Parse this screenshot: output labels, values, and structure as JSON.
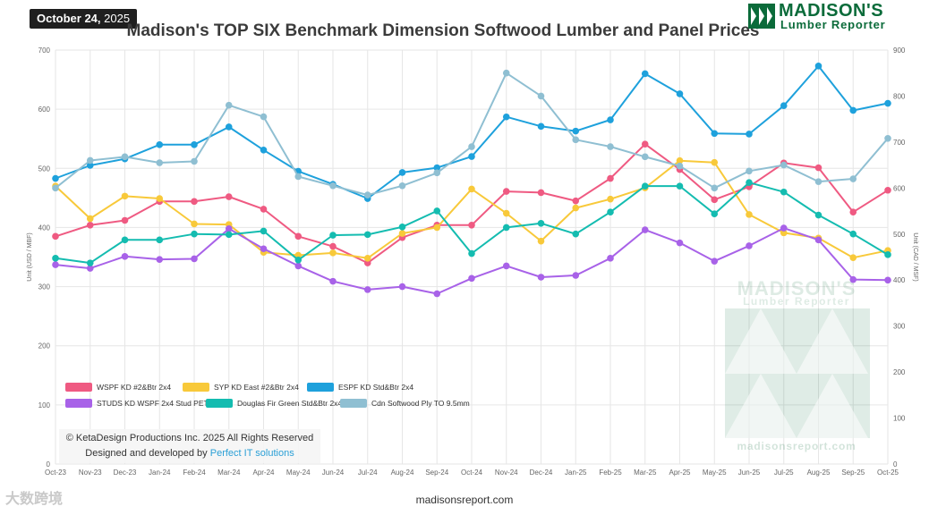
{
  "header": {
    "date_badge": "October 24,",
    "date_year": "2025",
    "title": "Madison's TOP SIX Benchmark Dimension Softwood Lumber and Panel Prices",
    "logo_line1": "MADISON'S",
    "logo_line2": "Lumber Reporter"
  },
  "watermark": {
    "line1": "MADISON'S",
    "line2": "Lumber Reporter",
    "site": "madisonsreport.com",
    "corner": "大数跨境"
  },
  "credits": {
    "copyright": "© KetaDesign Productions Inc. 2025 All Rights Reserved",
    "designed_prefix": "Designed and developed by",
    "designed_link": "Perfect IT solutions"
  },
  "footer": {
    "site": "madisonsreport.com"
  },
  "colors": {
    "wspf": "#ef5a82",
    "syp": "#f8c93a",
    "espf": "#1ea1dc",
    "studs": "#a862e8",
    "doug": "#14bcb0",
    "ply": "#8fbfd2",
    "grid": "#e6e6e6",
    "axis_text": "#666666",
    "watermark": "#0b6b3a"
  },
  "chart_data": {
    "type": "line",
    "categories": [
      "Oct-23",
      "Nov-23",
      "Dec-23",
      "Jan-24",
      "Feb-24",
      "Mar-24",
      "Apr-24",
      "May-24",
      "Jun-24",
      "Jul-24",
      "Aug-24",
      "Sep-24",
      "Oct-24",
      "Nov-24",
      "Dec-24",
      "Jan-25",
      "Feb-25",
      "Mar-25",
      "Apr-25",
      "May-25",
      "Jun-25",
      "Jul-25",
      "Aug-25",
      "Sep-25",
      "Oct-25"
    ],
    "y_left": {
      "label": "Unit (USD / MBF)",
      "ticks": [
        0,
        100,
        200,
        300,
        400,
        500,
        600,
        700
      ],
      "range": [
        0,
        700
      ]
    },
    "y_right": {
      "label": "Unit (CAD / MSF)",
      "ticks": [
        0,
        100,
        200,
        300,
        400,
        500,
        600,
        700,
        800,
        900
      ],
      "range": [
        0,
        900
      ]
    },
    "grid": true,
    "legend_position": "bottom-left",
    "series": [
      {
        "name": "WSPF KD #2&Btr 2x4",
        "color_key": "wspf",
        "axis": "left",
        "values": [
          385,
          404,
          412,
          444,
          444,
          452,
          431,
          385,
          368,
          340,
          383,
          404,
          404,
          461,
          459,
          445,
          483,
          541,
          498,
          447,
          469,
          509,
          501,
          426,
          463
        ]
      },
      {
        "name": "SYP KD East #2&Btr 2x4",
        "color_key": "syp",
        "axis": "left",
        "values": [
          470,
          415,
          453,
          449,
          406,
          405,
          358,
          353,
          357,
          348,
          390,
          400,
          465,
          424,
          377,
          433,
          448,
          467,
          513,
          510,
          422,
          391,
          382,
          349,
          361
        ]
      },
      {
        "name": "ESPF KD Std&Btr 2x4",
        "color_key": "espf",
        "axis": "left",
        "values": [
          483,
          505,
          516,
          540,
          540,
          570,
          531,
          495,
          473,
          449,
          493,
          501,
          520,
          587,
          571,
          563,
          582,
          660,
          626,
          559,
          558,
          606,
          673,
          598,
          610
        ]
      },
      {
        "name": "STUDS KD WSPF 2x4 Stud PET",
        "color_key": "studs",
        "axis": "left",
        "values": [
          337,
          331,
          351,
          346,
          347,
          398,
          364,
          335,
          309,
          295,
          300,
          288,
          314,
          335,
          316,
          319,
          348,
          396,
          374,
          343,
          369,
          399,
          379,
          312,
          311
        ]
      },
      {
        "name": "Douglas Fir Green Std&Btr 2x4",
        "color_key": "doug",
        "axis": "left",
        "values": [
          348,
          340,
          379,
          379,
          389,
          388,
          394,
          345,
          387,
          388,
          401,
          428,
          356,
          400,
          407,
          389,
          426,
          470,
          470,
          423,
          476,
          460,
          421,
          389,
          354
        ]
      },
      {
        "name": "Cdn Softwood Ply TO 9.5mm",
        "color_key": "ply",
        "axis": "right",
        "values": [
          600,
          660,
          668,
          655,
          658,
          780,
          755,
          625,
          605,
          585,
          605,
          633,
          690,
          850,
          800,
          705,
          690,
          668,
          648,
          600,
          637,
          650,
          614,
          620,
          708
        ]
      }
    ]
  }
}
